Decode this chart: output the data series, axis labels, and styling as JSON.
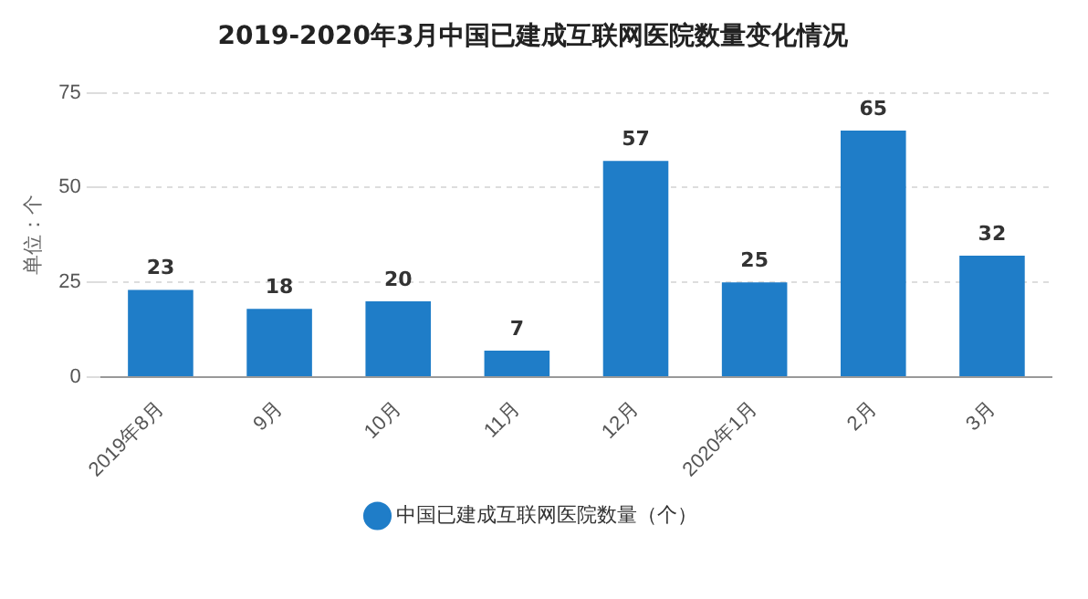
{
  "chart_data": {
    "type": "bar",
    "title": "2019-2020年3月中国已建成互联网医院数量变化情况",
    "ylabel": "单位：个",
    "categories": [
      "2019年8月",
      "9月",
      "10月",
      "11月",
      "12月",
      "2020年1月",
      "2月",
      "3月"
    ],
    "series": [
      {
        "name": "中国已建成互联网医院数量（个）",
        "color": "#1f7dc8",
        "values": [
          23,
          18,
          20,
          7,
          57,
          25,
          65,
          32
        ]
      }
    ],
    "ylim": [
      0,
      75
    ],
    "yticks": [
      0,
      25,
      50,
      75
    ],
    "grid": "y",
    "legend": "bottom",
    "data_labels": true
  }
}
